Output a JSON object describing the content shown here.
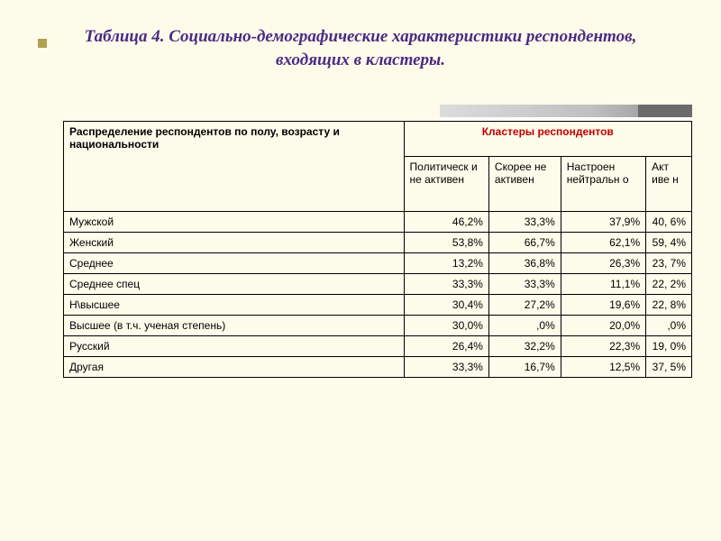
{
  "title": "Таблица 4. Социально-демографические характеристики респондентов, входящих в кластеры.",
  "table": {
    "type": "table",
    "background_color": "#fdfbea",
    "border_color": "#000000",
    "header_left": "Распределение респондентов по полу, возрасту и национальности",
    "header_right": "Кластеры респондентов",
    "header_right_color": "#c00000",
    "columns": [
      "Политическ и не активен",
      "Скорее не активен",
      "Настроен нейтральн о",
      "Акт иве н"
    ],
    "rows": [
      {
        "label": "Мужской",
        "vals": [
          "46,2%",
          "33,3%",
          "37,9%",
          "40, 6%"
        ]
      },
      {
        "label": " Женский",
        "vals": [
          "53,8%",
          "66,7%",
          "62,1%",
          "59, 4%"
        ]
      },
      {
        "label": "Среднее",
        "vals": [
          "13,2%",
          "36,8%",
          "26,3%",
          "23, 7%"
        ]
      },
      {
        "label": "Среднее спец",
        "vals": [
          "33,3%",
          "33,3%",
          "11,1%",
          "22, 2%"
        ]
      },
      {
        "label": "Н\\высшее",
        "vals": [
          "30,4%",
          "27,2%",
          "19,6%",
          "22, 8%"
        ]
      },
      {
        "label": "Высшее (в т.ч. ученая степень)",
        "vals": [
          "30,0%",
          ",0%",
          "20,0%",
          ",0%"
        ]
      },
      {
        "label": "Русский",
        "vals": [
          "26,4%",
          "32,2%",
          "22,3%",
          "19, 0%"
        ]
      },
      {
        "label": "Другая",
        "vals": [
          "33,3%",
          "16,7%",
          "12,5%",
          "37, 5%"
        ]
      }
    ],
    "col_widths_pct": [
      52,
      13,
      11,
      13,
      7
    ],
    "label_fontsize": 12,
    "header_fontsize": 12,
    "title_color": "#4b2a85",
    "title_fontsize": 19
  }
}
